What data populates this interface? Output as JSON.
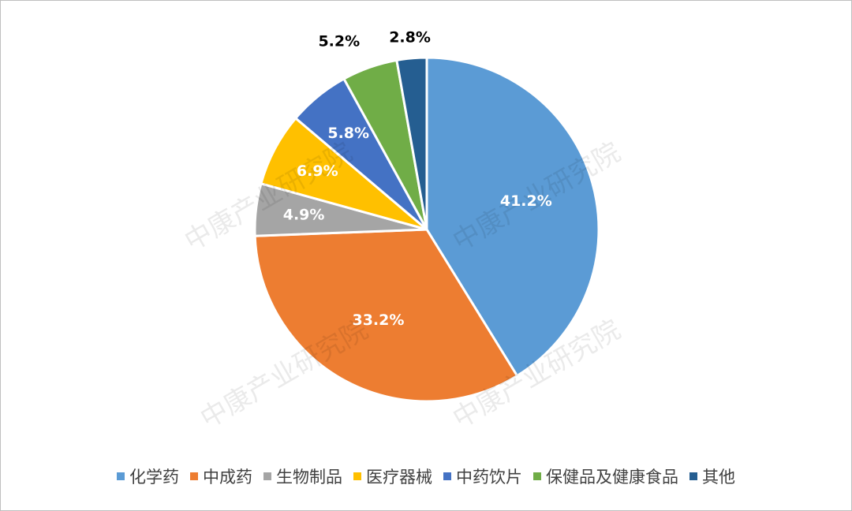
{
  "chart_data": {
    "type": "pie",
    "categories": [
      "化学药",
      "中成药",
      "生物制品",
      "医疗器械",
      "中药饮片",
      "保健品及健康食品",
      "其他"
    ],
    "values": [
      41.2,
      33.2,
      4.9,
      6.9,
      5.8,
      5.2,
      2.8
    ],
    "value_labels": [
      "41.2%",
      "33.2%",
      "4.9%",
      "6.9%",
      "5.8%",
      "5.2%",
      "2.8%"
    ],
    "colors": [
      "#5b9bd5",
      "#ed7d31",
      "#a5a5a5",
      "#ffc000",
      "#4472c4",
      "#70ad47",
      "#255e91"
    ],
    "legend": "bottom",
    "watermark": "中康产业研究院"
  }
}
